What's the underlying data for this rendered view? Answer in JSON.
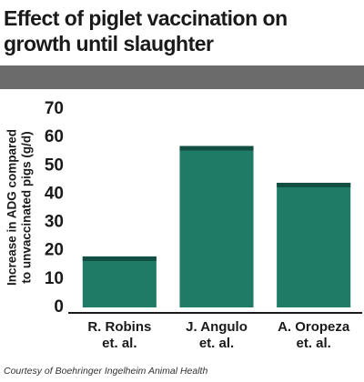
{
  "chart_data": {
    "type": "bar",
    "title": [
      "Effect of piglet vaccination on",
      "growth until slaughter"
    ],
    "y_label": [
      "Increase in ADG compared",
      "to unvaccinated pigs (g/d)"
    ],
    "categories": [
      [
        "R. Robins",
        "et. al."
      ],
      [
        "J. Angulo",
        "et. al."
      ],
      [
        "A. Oropeza",
        "et. al."
      ]
    ],
    "values": [
      18,
      57,
      44
    ],
    "color": "#1f7a66",
    "cap_color": "#124f42",
    "ylim": [
      0,
      70
    ],
    "yticks": [
      0,
      10,
      20,
      30,
      40,
      50,
      60,
      70
    ],
    "credit": "Courtesy of Boehringer Ingelheim Animal Health"
  }
}
